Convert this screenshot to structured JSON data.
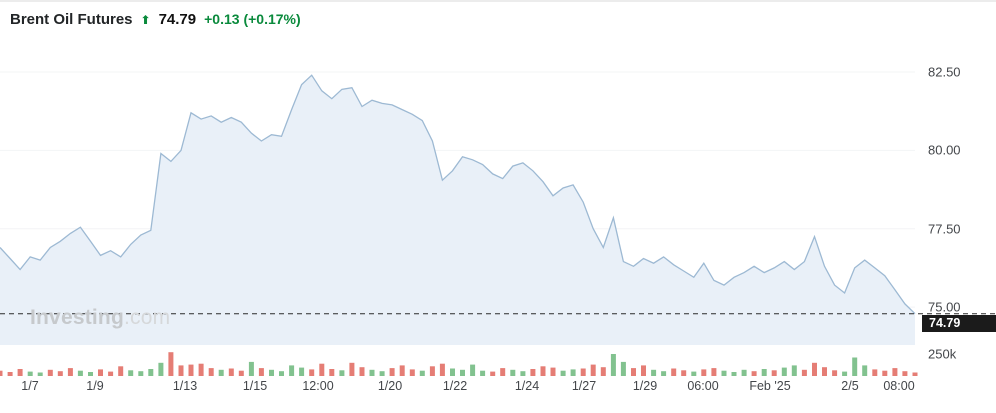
{
  "header": {
    "title": "Brent Oil Futures",
    "arrow_icon": "⬆",
    "price": "74.79",
    "change": "+0.13 (+0.17%)"
  },
  "watermark": {
    "bold": "Investing",
    "light": ".com"
  },
  "colors": {
    "accent_green": "#0a8a3c",
    "line": "#9db9d3",
    "area_fill": "#e9f0f8",
    "grid": "#f3f4f6",
    "dash": "#2b2b2b",
    "tag_bg": "#1b1b1b",
    "vol_up": "#82c28f",
    "vol_down": "#e57d75"
  },
  "chart_data": {
    "type": "area",
    "title": "Brent Oil Futures price with volume",
    "xlabel": "",
    "ylabel": "",
    "ylim": [
      73.79,
      82.98
    ],
    "grid": "faint-horizontal",
    "legend": "none",
    "current_price": 74.79,
    "price_label": "74.79",
    "y_ticks": [
      {
        "label": "82.50",
        "value": 82.5
      },
      {
        "label": "80.00",
        "value": 80.0
      },
      {
        "label": "77.50",
        "value": 77.5
      },
      {
        "label": "75.00",
        "value": 75.0
      }
    ],
    "x_ticks": [
      {
        "label": "1/7",
        "pos": 0.033
      },
      {
        "label": "1/9",
        "pos": 0.104
      },
      {
        "label": "1/13",
        "pos": 0.202
      },
      {
        "label": "1/15",
        "pos": 0.279
      },
      {
        "label": "12:00",
        "pos": 0.348
      },
      {
        "label": "1/20",
        "pos": 0.426
      },
      {
        "label": "1/22",
        "pos": 0.497
      },
      {
        "label": "1/24",
        "pos": 0.576
      },
      {
        "label": "1/27",
        "pos": 0.638
      },
      {
        "label": "1/29",
        "pos": 0.705
      },
      {
        "label": "06:00",
        "pos": 0.768
      },
      {
        "label": "Feb '25",
        "pos": 0.842
      },
      {
        "label": "2/5",
        "pos": 0.929
      },
      {
        "label": "08:00",
        "pos": 0.983
      }
    ],
    "price_series": [
      76.9,
      76.55,
      76.2,
      76.6,
      76.5,
      76.9,
      77.1,
      77.35,
      77.55,
      77.1,
      76.65,
      76.8,
      76.6,
      77.0,
      77.3,
      77.45,
      79.9,
      79.65,
      80.0,
      81.2,
      81.0,
      81.1,
      80.9,
      81.05,
      80.9,
      80.55,
      80.3,
      80.5,
      80.45,
      81.3,
      82.1,
      82.4,
      81.9,
      81.65,
      81.95,
      82.0,
      81.4,
      81.6,
      81.5,
      81.45,
      81.3,
      81.15,
      80.95,
      80.3,
      79.05,
      79.35,
      79.8,
      79.7,
      79.55,
      79.25,
      79.1,
      79.5,
      79.6,
      79.35,
      79.0,
      78.55,
      78.8,
      78.9,
      78.35,
      77.5,
      76.9,
      77.85,
      76.45,
      76.3,
      76.55,
      76.4,
      76.6,
      76.35,
      76.15,
      75.95,
      76.4,
      75.85,
      75.7,
      75.95,
      76.1,
      76.3,
      76.1,
      76.25,
      76.45,
      76.2,
      76.45,
      77.25,
      76.3,
      75.7,
      75.45,
      76.25,
      76.5,
      76.25,
      76.0,
      75.55,
      75.1,
      74.79
    ],
    "volume": {
      "axis_label": "250k",
      "axis_value": 250,
      "unit": "k",
      "values": [
        60,
        45,
        80,
        50,
        40,
        70,
        55,
        90,
        60,
        45,
        75,
        50,
        110,
        65,
        55,
        80,
        150,
        270,
        120,
        130,
        140,
        90,
        70,
        85,
        60,
        160,
        90,
        70,
        55,
        120,
        95,
        75,
        140,
        80,
        65,
        150,
        100,
        70,
        55,
        90,
        120,
        75,
        60,
        110,
        140,
        85,
        70,
        130,
        60,
        50,
        90,
        70,
        55,
        80,
        110,
        95,
        60,
        75,
        85,
        130,
        100,
        250,
        160,
        90,
        120,
        70,
        55,
        85,
        65,
        50,
        75,
        90,
        60,
        45,
        70,
        55,
        80,
        65,
        95,
        120,
        70,
        150,
        100,
        65,
        50,
        210,
        120,
        75,
        60,
        90,
        55,
        40
      ],
      "colors": "rrrggrrrggrrrggggrrrrrgrrgrggggrrrgrrggrrrgrrggggrrggrrrggrrrggrrggrrgrrgggrgrggrrrrgggrrrrr"
    }
  }
}
